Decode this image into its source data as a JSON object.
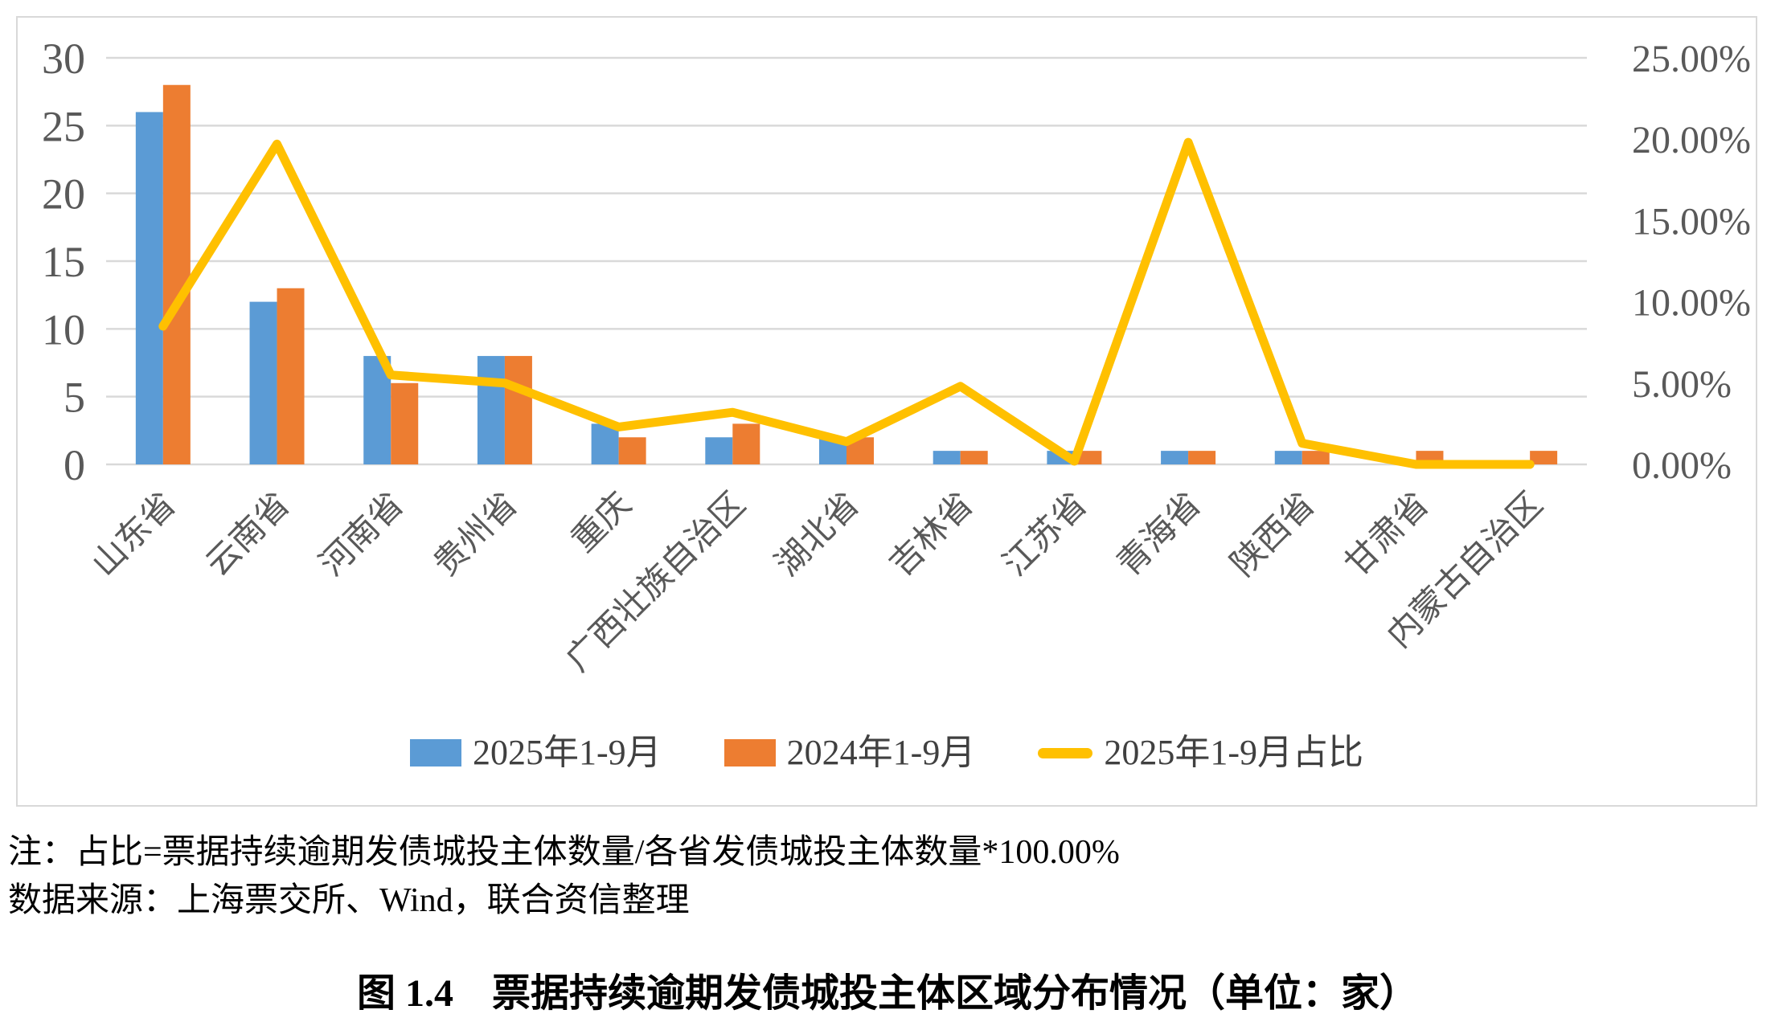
{
  "figure": {
    "note_line1": "注：占比=票据持续逾期发债城投主体数量/各省发债城投主体数量*100.00%",
    "note_line2": "数据来源：上海票交所、Wind，联合资信整理",
    "caption": "图 1.4　票据持续逾期发债城投主体区域分布情况（单位：家）"
  },
  "colors": {
    "bar_2025": "#5B9BD5",
    "bar_2024": "#ED7D31",
    "line_ratio": "#FFC000",
    "gridline": "#D9D9D9",
    "axis_text": "#595959",
    "border": "#D9D9D9"
  },
  "chart_data": {
    "type": "bar",
    "subtype": "grouped-bars-with-line-overlay",
    "categories": [
      "山东省",
      "云南省",
      "河南省",
      "贵州省",
      "重庆",
      "广西壮族自治区",
      "湖北省",
      "吉林省",
      "江苏省",
      "青海省",
      "陕西省",
      "甘肃省",
      "内蒙古自治区"
    ],
    "series": [
      {
        "name": "2025年1-9月",
        "type": "bar",
        "axis": "left",
        "color": "#5B9BD5",
        "values": [
          26,
          12,
          8,
          8,
          3,
          2,
          2,
          1,
          1,
          1,
          1,
          0,
          0
        ]
      },
      {
        "name": "2024年1-9月",
        "type": "bar",
        "axis": "left",
        "color": "#ED7D31",
        "values": [
          28,
          13,
          6,
          8,
          2,
          3,
          2,
          1,
          1,
          1,
          1,
          1,
          1
        ]
      },
      {
        "name": "2025年1-9月占比",
        "type": "line",
        "axis": "right",
        "color": "#FFC000",
        "values": [
          8.5,
          19.7,
          5.5,
          5.0,
          2.3,
          3.2,
          1.4,
          4.8,
          0.2,
          19.8,
          1.3,
          0.0,
          0.0
        ]
      }
    ],
    "left_axis": {
      "min": 0,
      "max": 30,
      "step": 5,
      "ticks": [
        "0",
        "5",
        "10",
        "15",
        "20",
        "25",
        "30"
      ]
    },
    "right_axis": {
      "min": 0,
      "max": 25,
      "step": 5,
      "ticks": [
        "0.00%",
        "5.00%",
        "10.00%",
        "15.00%",
        "20.00%",
        "25.00%"
      ]
    },
    "grid": true,
    "legend_position": "bottom",
    "title": "",
    "xlabel": "",
    "ylabel": ""
  }
}
